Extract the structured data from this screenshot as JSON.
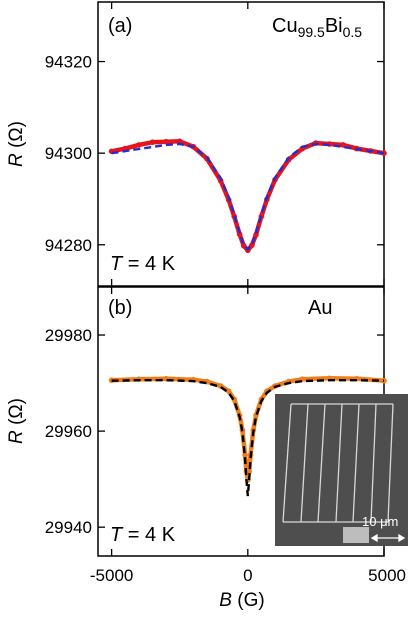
{
  "chart_data": [
    {
      "type": "line",
      "panel_label": "(a)",
      "material": {
        "base": "Cu",
        "sub1": "99.5",
        "mid": "Bi",
        "sub2": "0.5"
      },
      "temperature": {
        "var": "T",
        "rest": " = 4 K"
      },
      "x_axis": {
        "var": "B",
        "unit": " (G)"
      },
      "y_axis": {
        "var": "R",
        "unit": " (Ω)"
      },
      "xlim": [
        -5500,
        5000
      ],
      "ylim": [
        94271,
        94333
      ],
      "yticks": [
        94280,
        94300,
        94320
      ],
      "ytick_labels": [
        "94280",
        "94300",
        "94320"
      ],
      "grid": false,
      "series": [
        {
          "role": "measured",
          "color": "#e8141b",
          "x": [
            -5000,
            -4500,
            -4000,
            -3500,
            -3000,
            -2500,
            -2000,
            -1500,
            -1000,
            -700,
            -500,
            -300,
            -150,
            0,
            150,
            300,
            500,
            700,
            1000,
            1500,
            2000,
            2500,
            3000,
            3500,
            4000,
            4500,
            5000
          ],
          "y": [
            94300.4,
            94301.0,
            94301.8,
            94302.4,
            94302.5,
            94302.6,
            94301.4,
            94298.8,
            94294.0,
            94289.8,
            94286.2,
            94282.3,
            94279.8,
            94278.8,
            94279.9,
            94282.2,
            94286.2,
            94289.9,
            94294.2,
            94298.6,
            94301.0,
            94302.2,
            94302.0,
            94301.8,
            94301.0,
            94300.5,
            94300.0
          ]
        },
        {
          "role": "fit",
          "color": "#1f2fd6",
          "x": [
            -5000,
            -4000,
            -3000,
            -2500,
            -2000,
            -1500,
            -1000,
            -700,
            -500,
            -300,
            -150,
            0,
            150,
            300,
            500,
            700,
            1000,
            1500,
            2000,
            2500,
            3000,
            4000,
            5000
          ],
          "y": [
            94300.0,
            94300.9,
            94301.8,
            94302.0,
            94301.4,
            94299.0,
            94294.6,
            94290.4,
            94286.6,
            94282.6,
            94280.0,
            94279.0,
            94280.0,
            94282.6,
            94286.6,
            94290.4,
            94294.6,
            94299.0,
            94301.4,
            94302.0,
            94301.8,
            94300.9,
            94300.0
          ]
        }
      ]
    },
    {
      "type": "line",
      "panel_label": "(b)",
      "material": {
        "base": "Au"
      },
      "temperature": {
        "var": "T",
        "rest": " = 4 K"
      },
      "x_axis": {
        "var": "B",
        "unit": " (G)"
      },
      "y_axis": {
        "var": "R",
        "unit": " (Ω)"
      },
      "xlim": [
        -5500,
        5000
      ],
      "ylim": [
        29934,
        29990
      ],
      "xticks": [
        -5000,
        0,
        5000
      ],
      "xtick_labels": [
        "-5000",
        "0",
        "5000"
      ],
      "yticks": [
        29940,
        29960,
        29980
      ],
      "ytick_labels": [
        "29940",
        "29960",
        "29980"
      ],
      "grid": false,
      "series": [
        {
          "role": "measured",
          "color": "#f07d1a",
          "x": [
            -5000,
            -4000,
            -3000,
            -2000,
            -1500,
            -1000,
            -700,
            -500,
            -300,
            -200,
            -100,
            -50,
            0,
            50,
            100,
            200,
            300,
            500,
            700,
            1000,
            1500,
            2000,
            3000,
            4000,
            5000
          ],
          "y": [
            29970.6,
            29970.8,
            29970.9,
            29970.7,
            29970.3,
            29969.4,
            29968.3,
            29966.6,
            29963.3,
            29960.2,
            29955.0,
            29951.6,
            29949.8,
            29951.6,
            29955.0,
            29960.2,
            29963.3,
            29966.6,
            29968.3,
            29969.4,
            29970.3,
            29970.8,
            29971.0,
            29970.9,
            29970.5
          ]
        },
        {
          "role": "fit",
          "color": "#000000",
          "x": [
            -5000,
            -4000,
            -3000,
            -2000,
            -1500,
            -1000,
            -700,
            -500,
            -300,
            -200,
            -100,
            -50,
            0,
            50,
            100,
            200,
            300,
            500,
            700,
            1000,
            1500,
            2000,
            3000,
            4000,
            5000
          ],
          "y": [
            29970.5,
            29970.6,
            29970.6,
            29970.4,
            29970.0,
            29969.2,
            29968.0,
            29966.3,
            29963.0,
            29959.8,
            29954.2,
            29950.0,
            29946.5,
            29950.0,
            29954.2,
            29959.8,
            29963.0,
            29966.3,
            29968.0,
            29969.2,
            29970.0,
            29970.4,
            29970.6,
            29970.6,
            29970.5
          ]
        }
      ]
    }
  ],
  "inset": {
    "kind": "scanning-electron micrograph",
    "scale_bar_text": "10 μm"
  }
}
